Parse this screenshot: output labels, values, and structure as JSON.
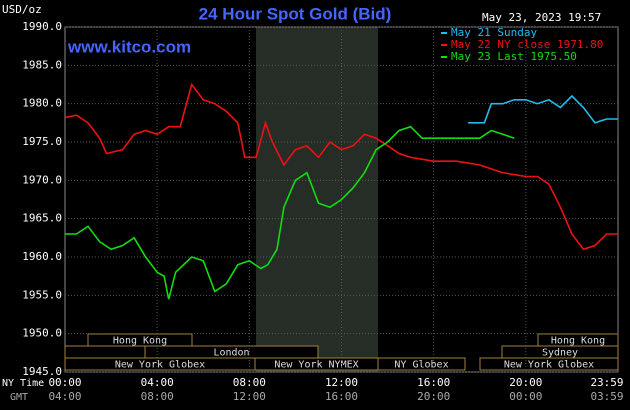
{
  "chart_data": {
    "type": "line",
    "title": "24 Hour Spot Gold (Bid)",
    "y_label": "USD/oz",
    "timestamp": "May 23, 2023 19:57",
    "watermark": "www.kitco.com",
    "x_row_label": "NY Time",
    "x2_row_label": "GMT",
    "xlim": [
      0,
      24
    ],
    "xticks": [
      {
        "value": 0,
        "label": "00:00"
      },
      {
        "value": 4,
        "label": "04:00"
      },
      {
        "value": 8,
        "label": "08:00"
      },
      {
        "value": 12,
        "label": "12:00"
      },
      {
        "value": 16,
        "label": "16:00"
      },
      {
        "value": 20,
        "label": "20:00"
      },
      {
        "value": 24,
        "label": "23:59"
      }
    ],
    "x2ticks": [
      {
        "value": 0,
        "label": "04:00"
      },
      {
        "value": 4,
        "label": "08:00"
      },
      {
        "value": 8,
        "label": "12:00"
      },
      {
        "value": 12,
        "label": "16:00"
      },
      {
        "value": 16,
        "label": "20:00"
      },
      {
        "value": 20,
        "label": "00:00"
      },
      {
        "value": 24,
        "label": "03:59"
      }
    ],
    "ylim": [
      1945,
      1990
    ],
    "yticks": [
      {
        "value": 1945,
        "label": "1945.0"
      },
      {
        "value": 1950,
        "label": "1950.0"
      },
      {
        "value": 1955,
        "label": "1955.0"
      },
      {
        "value": 1960,
        "label": "1960.0"
      },
      {
        "value": 1965,
        "label": "1965.0"
      },
      {
        "value": 1970,
        "label": "1970.0"
      },
      {
        "value": 1975,
        "label": "1975.0"
      },
      {
        "value": 1980,
        "label": "1980.0"
      },
      {
        "value": 1985,
        "label": "1985.0"
      },
      {
        "value": 1990,
        "label": "1990.0"
      }
    ],
    "grid": true,
    "sessions": [
      "Hong Kong",
      "London",
      "New York Globex",
      "New York NYMEX",
      "NY Globex",
      "Hong Kong",
      "Sydney",
      "New York Globex"
    ],
    "series": [
      {
        "name": "May 21 Sunday",
        "color": "#22bbee",
        "x": [
          17.5,
          18.2,
          18.5,
          19,
          19.5,
          20,
          20.5,
          21,
          21.5,
          22,
          22.5,
          23,
          23.5,
          24
        ],
        "values": [
          1977.5,
          1977.5,
          1980,
          1980,
          1980.5,
          1980.5,
          1980,
          1980.5,
          1979.5,
          1981,
          1979.5,
          1977.5,
          1978,
          1978
        ]
      },
      {
        "name": "May 22 NY close 1971.80",
        "color": "#ee1111",
        "x": [
          0,
          0.5,
          1,
          1.5,
          1.8,
          2.5,
          3,
          3.5,
          4,
          4.5,
          5,
          5.5,
          6,
          6.5,
          7,
          7.5,
          7.8,
          8.3,
          8.7,
          9,
          9.5,
          10,
          10.5,
          11,
          11.5,
          12,
          12.5,
          13,
          13.5,
          14,
          14.5,
          15,
          16,
          17,
          18,
          19,
          20,
          20.5,
          21,
          21.5,
          22,
          22.5,
          23,
          23.5,
          24
        ],
        "values": [
          1978.2,
          1978.5,
          1977.5,
          1975.5,
          1973.5,
          1974,
          1976,
          1976.5,
          1976,
          1977,
          1977,
          1982.5,
          1980.5,
          1980,
          1979,
          1977.5,
          1973,
          1973,
          1977.5,
          1975,
          1972,
          1974,
          1974.5,
          1973,
          1975,
          1974,
          1974.5,
          1976,
          1975.5,
          1974.5,
          1973.5,
          1973,
          1972.5,
          1972.5,
          1972,
          1971,
          1970.5,
          1970.5,
          1969.5,
          1966.5,
          1963,
          1961,
          1961.5,
          1963,
          1963
        ]
      },
      {
        "name": "May 23 Last 1975.50",
        "color": "#11dd11",
        "x": [
          0,
          0.5,
          1,
          1.5,
          2,
          2.5,
          3,
          3.5,
          4,
          4.3,
          4.5,
          4.8,
          5.5,
          6,
          6.5,
          7,
          7.5,
          8,
          8.5,
          8.8,
          9.2,
          9.5,
          10,
          10.5,
          11,
          11.5,
          12,
          12.5,
          13,
          13.5,
          14,
          14.5,
          15,
          15.5,
          16,
          17,
          18,
          18.5,
          19,
          19.5
        ],
        "values": [
          1963,
          1963,
          1964,
          1962,
          1961,
          1961.5,
          1962.5,
          1960,
          1958,
          1957.5,
          1954.5,
          1958,
          1960,
          1959.5,
          1955.5,
          1956.5,
          1959,
          1959.5,
          1958.5,
          1959,
          1961,
          1966.5,
          1970,
          1971,
          1967,
          1966.5,
          1967.5,
          1969,
          1971,
          1974,
          1975,
          1976.5,
          1977,
          1975.5,
          1975.5,
          1975.5,
          1975.5,
          1976.5,
          1976,
          1975.5
        ]
      }
    ]
  }
}
